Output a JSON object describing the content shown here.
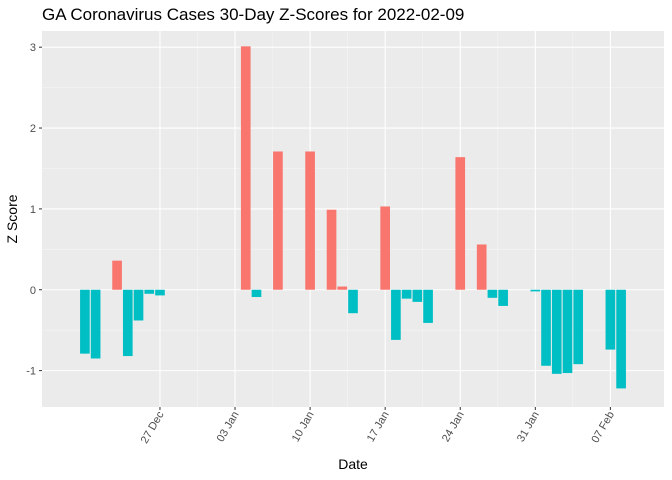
{
  "chart_data": {
    "type": "bar",
    "title": "GA Coronavirus Cases 30-Day Z-Scores for 2022-02-09",
    "xlabel": "Date",
    "ylabel": "Z Score",
    "x_range": [
      "2021-12-16",
      "2022-02-12"
    ],
    "ylim": [
      -1.45,
      3.2
    ],
    "y_ticks": [
      -1,
      0,
      1,
      2,
      3
    ],
    "x_ticks": [
      {
        "date": "2021-12-27",
        "label": "27 Dec"
      },
      {
        "date": "2022-01-03",
        "label": "03 Jan"
      },
      {
        "date": "2022-01-10",
        "label": "10 Jan"
      },
      {
        "date": "2022-01-17",
        "label": "17 Jan"
      },
      {
        "date": "2022-01-24",
        "label": "24 Jan"
      },
      {
        "date": "2022-01-31",
        "label": "31 Jan"
      },
      {
        "date": "2022-02-07",
        "label": "07 Feb"
      }
    ],
    "colors": {
      "positive": "#F8766D",
      "negative": "#00BFC4",
      "panel": "#EBEBEB",
      "grid_major": "#FFFFFF",
      "grid_minor": "#F5F5F5"
    },
    "grid": true,
    "legend": "none",
    "x": [
      "2021-12-20",
      "2021-12-21",
      "2021-12-23",
      "2021-12-24",
      "2021-12-25",
      "2021-12-26",
      "2021-12-27",
      "2022-01-04",
      "2022-01-05",
      "2022-01-07",
      "2022-01-10",
      "2022-01-12",
      "2022-01-13",
      "2022-01-14",
      "2022-01-17",
      "2022-01-18",
      "2022-01-19",
      "2022-01-20",
      "2022-01-21",
      "2022-01-24",
      "2022-01-26",
      "2022-01-27",
      "2022-01-28",
      "2022-01-31",
      "2022-02-01",
      "2022-02-02",
      "2022-02-03",
      "2022-02-04",
      "2022-02-07",
      "2022-02-08"
    ],
    "values": [
      -0.79,
      -0.85,
      0.36,
      -0.82,
      -0.38,
      -0.05,
      -0.07,
      3.01,
      -0.09,
      1.71,
      1.71,
      0.99,
      0.04,
      -0.29,
      1.03,
      -0.62,
      -0.11,
      -0.15,
      -0.41,
      1.64,
      0.56,
      -0.1,
      -0.2,
      -0.02,
      -0.94,
      -1.04,
      -1.03,
      -0.92,
      -0.74,
      -1.22
    ]
  }
}
